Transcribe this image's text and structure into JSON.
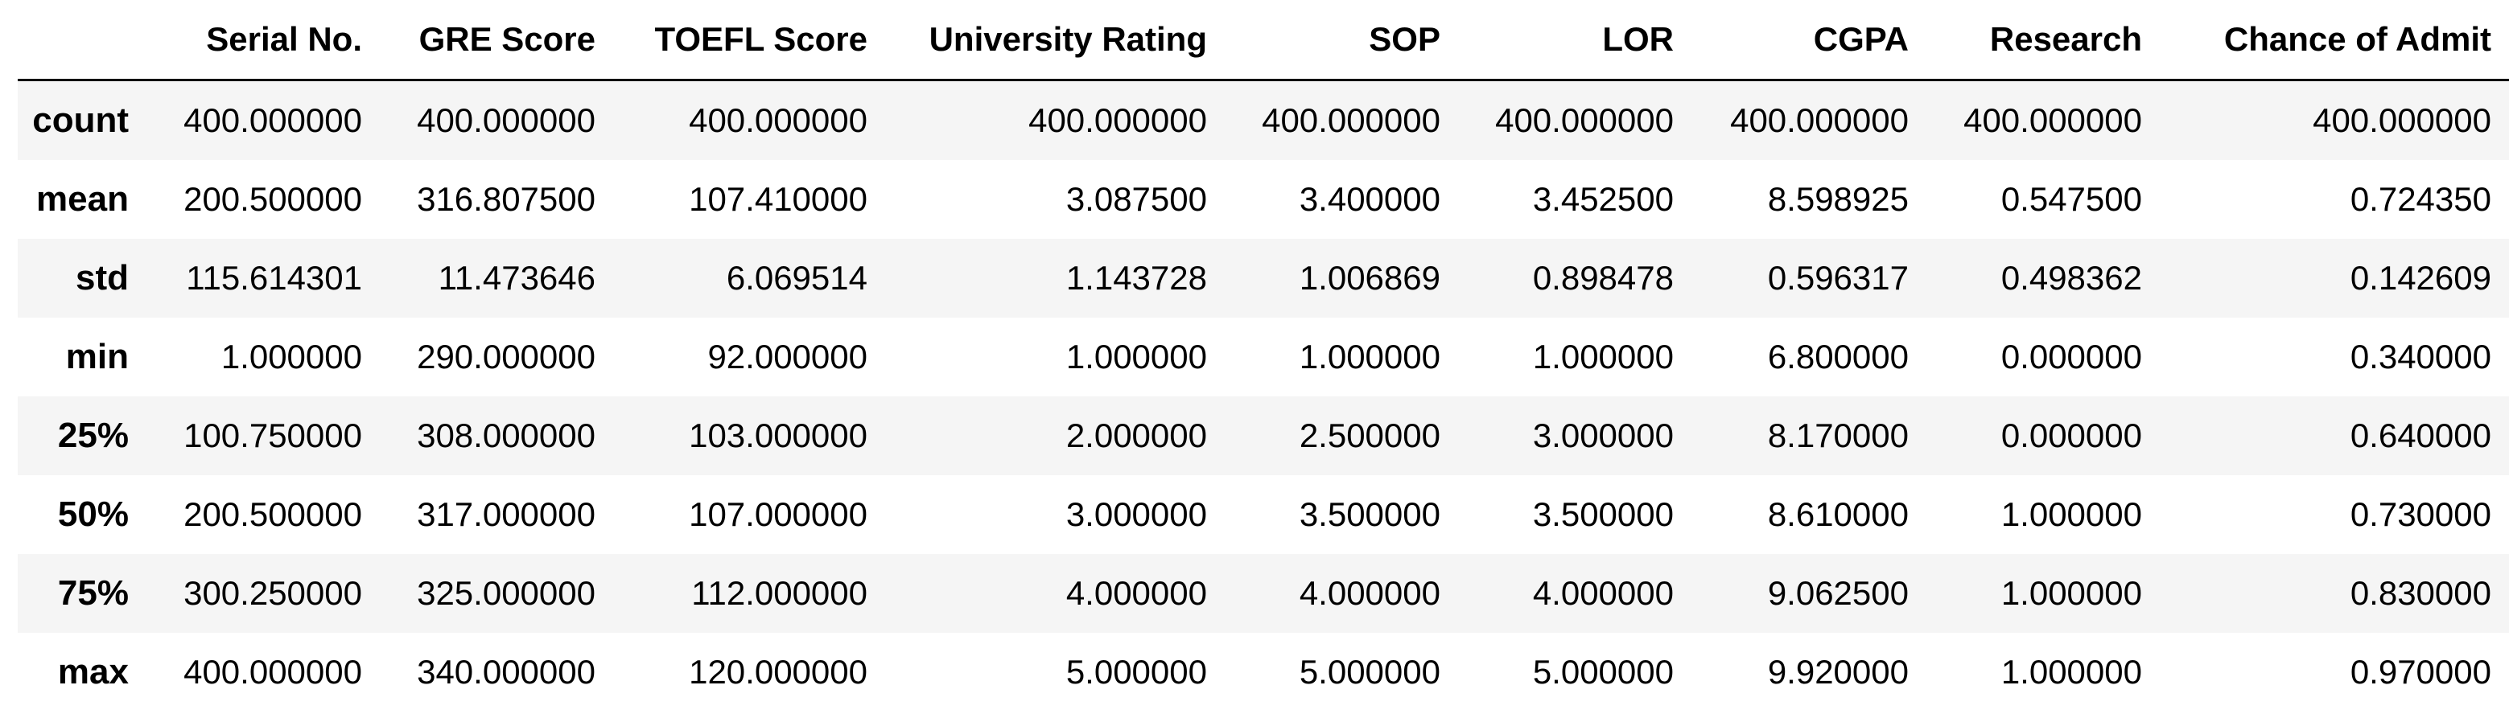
{
  "table": {
    "columns": [
      "",
      "Serial No.",
      "GRE Score",
      "TOEFL Score",
      "University Rating",
      "SOP",
      "LOR",
      "CGPA",
      "Research",
      "Chance of Admit"
    ],
    "rows": [
      {
        "label": "count",
        "values": [
          "400.000000",
          "400.000000",
          "400.000000",
          "400.000000",
          "400.000000",
          "400.000000",
          "400.000000",
          "400.000000",
          "400.000000"
        ]
      },
      {
        "label": "mean",
        "values": [
          "200.500000",
          "316.807500",
          "107.410000",
          "3.087500",
          "3.400000",
          "3.452500",
          "8.598925",
          "0.547500",
          "0.724350"
        ]
      },
      {
        "label": "std",
        "values": [
          "115.614301",
          "11.473646",
          "6.069514",
          "1.143728",
          "1.006869",
          "0.898478",
          "0.596317",
          "0.498362",
          "0.142609"
        ]
      },
      {
        "label": "min",
        "values": [
          "1.000000",
          "290.000000",
          "92.000000",
          "1.000000",
          "1.000000",
          "1.000000",
          "6.800000",
          "0.000000",
          "0.340000"
        ]
      },
      {
        "label": "25%",
        "values": [
          "100.750000",
          "308.000000",
          "103.000000",
          "2.000000",
          "2.500000",
          "3.000000",
          "8.170000",
          "0.000000",
          "0.640000"
        ]
      },
      {
        "label": "50%",
        "values": [
          "200.500000",
          "317.000000",
          "107.000000",
          "3.000000",
          "3.500000",
          "3.500000",
          "8.610000",
          "1.000000",
          "0.730000"
        ]
      },
      {
        "label": "75%",
        "values": [
          "300.250000",
          "325.000000",
          "112.000000",
          "4.000000",
          "4.000000",
          "4.000000",
          "9.062500",
          "1.000000",
          "0.830000"
        ]
      },
      {
        "label": "max",
        "values": [
          "400.000000",
          "340.000000",
          "120.000000",
          "5.000000",
          "5.000000",
          "5.000000",
          "9.920000",
          "1.000000",
          "0.970000"
        ]
      }
    ]
  }
}
